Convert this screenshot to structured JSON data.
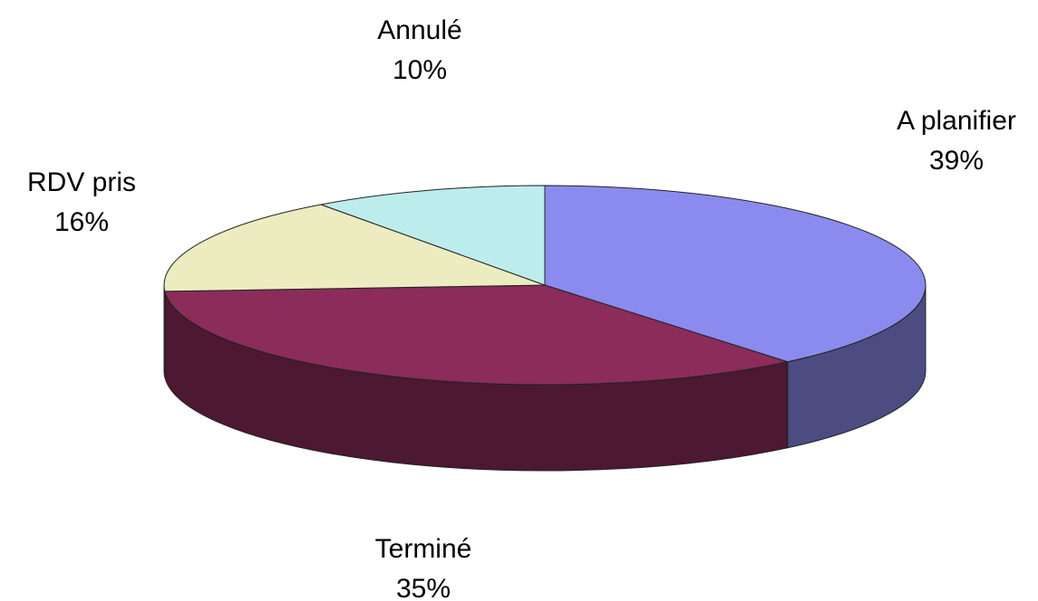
{
  "chart_data": {
    "type": "pie3d",
    "categories": [
      "A planifier",
      "Terminé",
      "RDV pris",
      "Annulé"
    ],
    "values": [
      39,
      35,
      16,
      10
    ],
    "value_labels": [
      "39%",
      "35%",
      "16%",
      "10%"
    ],
    "colors": [
      "#8b8bef",
      "#8b2c5a",
      "#ececc0",
      "#bdecec"
    ]
  }
}
